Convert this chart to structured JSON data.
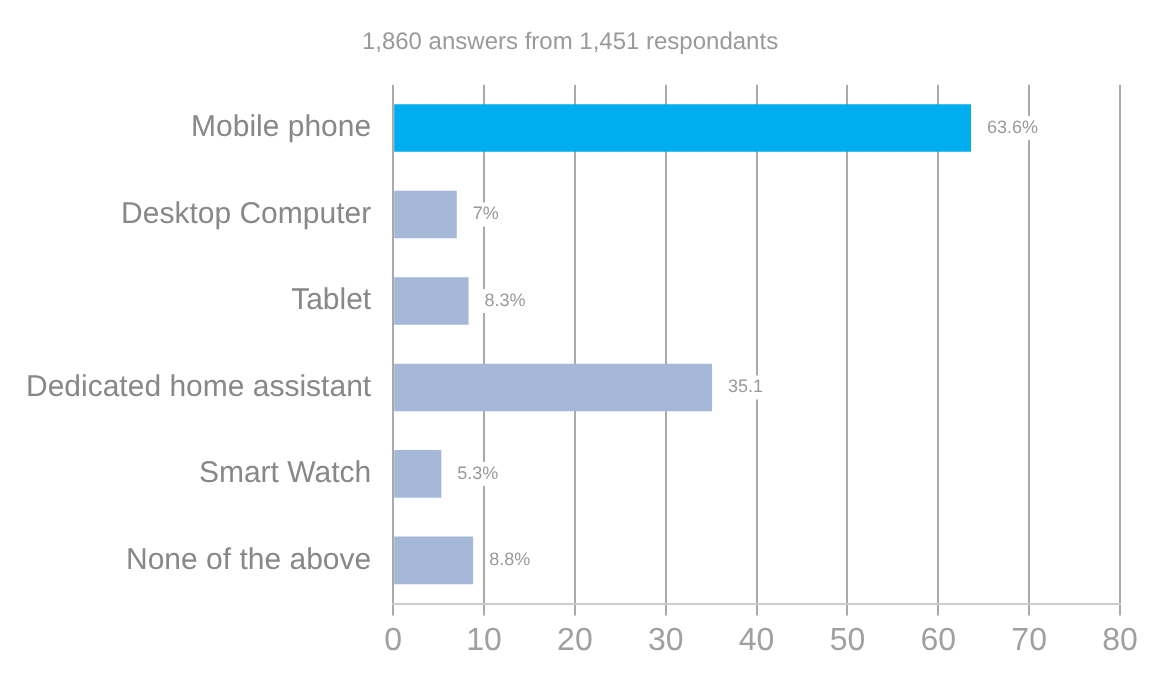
{
  "chart_data": {
    "type": "bar",
    "orientation": "horizontal",
    "title": "1,860 answers from 1,451 respondants",
    "categories": [
      "Mobile phone",
      "Desktop Computer",
      "Tablet",
      "Dedicated home assistant",
      "Smart Watch",
      "None of the above"
    ],
    "values": [
      63.6,
      7,
      8.3,
      35.1,
      5.3,
      8.8
    ],
    "colors": [
      "#00aeef",
      "#a5b8d8",
      "#a5b8d8",
      "#a5b8d8",
      "#a5b8d8",
      "#a5b8d8"
    ],
    "value_labels": [
      "63.6%",
      "7%",
      "8.3%",
      "35.1",
      "5.3%",
      "8.8%"
    ],
    "xlim": [
      0,
      80
    ],
    "xticks": [
      0,
      10,
      20,
      30,
      40,
      50,
      60,
      70,
      80
    ],
    "grid": "x",
    "legend": false
  }
}
